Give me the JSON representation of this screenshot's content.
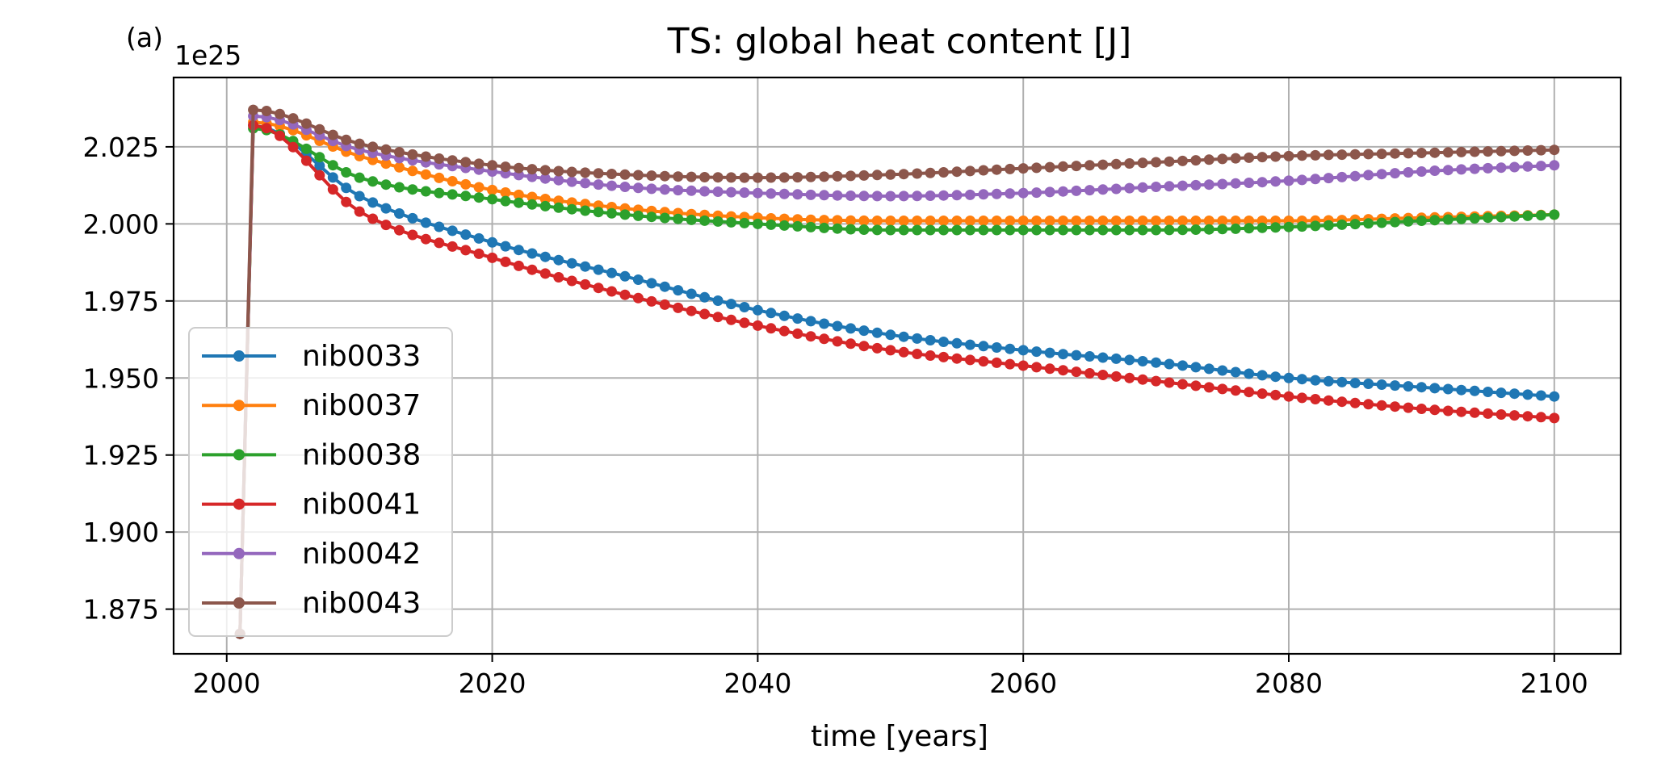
{
  "panel_label": "(a)",
  "chart_data": {
    "type": "line",
    "title": "TS: global heat content [J]",
    "xlabel": "time [years]",
    "ylabel": "",
    "offset_label": "1e25",
    "xlim": [
      1996,
      2105
    ],
    "ylim": [
      1.8605,
      2.0475
    ],
    "xticks": [
      2000,
      2020,
      2040,
      2060,
      2080,
      2100
    ],
    "xtick_labels": [
      "2000",
      "2020",
      "2040",
      "2060",
      "2080",
      "2100"
    ],
    "yticks": [
      1.875,
      1.9,
      1.925,
      1.95,
      1.975,
      2.0,
      2.025
    ],
    "ytick_labels": [
      "1.875",
      "1.900",
      "1.925",
      "1.950",
      "1.975",
      "2.000",
      "2.025"
    ],
    "grid": true,
    "legend_position": "lower-left",
    "marker": "circle",
    "series": [
      {
        "name": "nib0033",
        "color": "#1f77b4",
        "x": [
          2001,
          2002,
          2010,
          2020,
          2030,
          2040,
          2050,
          2060,
          2070,
          2080,
          2090,
          2100
        ],
        "y": [
          1.867,
          2.032,
          2.009,
          1.994,
          1.983,
          1.972,
          1.964,
          1.959,
          1.955,
          1.95,
          1.947,
          1.944
        ]
      },
      {
        "name": "nib0037",
        "color": "#ff7f0e",
        "x": [
          2001,
          2002,
          2010,
          2020,
          2030,
          2040,
          2050,
          2060,
          2070,
          2080,
          2090,
          2100
        ],
        "y": [
          1.867,
          2.033,
          2.022,
          2.011,
          2.005,
          2.002,
          2.001,
          2.001,
          2.001,
          2.001,
          2.002,
          2.003
        ]
      },
      {
        "name": "nib0038",
        "color": "#2ca02c",
        "x": [
          2001,
          2002,
          2010,
          2020,
          2030,
          2040,
          2050,
          2060,
          2070,
          2080,
          2090,
          2100
        ],
        "y": [
          1.867,
          2.031,
          2.015,
          2.008,
          2.003,
          2.0,
          1.998,
          1.998,
          1.998,
          1.999,
          2.001,
          2.003
        ]
      },
      {
        "name": "nib0041",
        "color": "#d62728",
        "x": [
          2001,
          2002,
          2010,
          2020,
          2030,
          2040,
          2050,
          2060,
          2070,
          2080,
          2090,
          2100
        ],
        "y": [
          1.867,
          2.032,
          2.004,
          1.989,
          1.977,
          1.967,
          1.959,
          1.954,
          1.949,
          1.944,
          1.94,
          1.937
        ]
      },
      {
        "name": "nib0042",
        "color": "#9467bd",
        "x": [
          2001,
          2002,
          2010,
          2020,
          2030,
          2040,
          2050,
          2060,
          2070,
          2080,
          2090,
          2100
        ],
        "y": [
          1.867,
          2.035,
          2.024,
          2.017,
          2.012,
          2.01,
          2.009,
          2.01,
          2.012,
          2.014,
          2.017,
          2.019
        ]
      },
      {
        "name": "nib0043",
        "color": "#8c564b",
        "x": [
          2001,
          2002,
          2010,
          2020,
          2030,
          2040,
          2050,
          2060,
          2070,
          2080,
          2090,
          2100
        ],
        "y": [
          1.867,
          2.037,
          2.026,
          2.019,
          2.016,
          2.015,
          2.016,
          2.018,
          2.02,
          2.022,
          2.023,
          2.024
        ]
      }
    ]
  }
}
